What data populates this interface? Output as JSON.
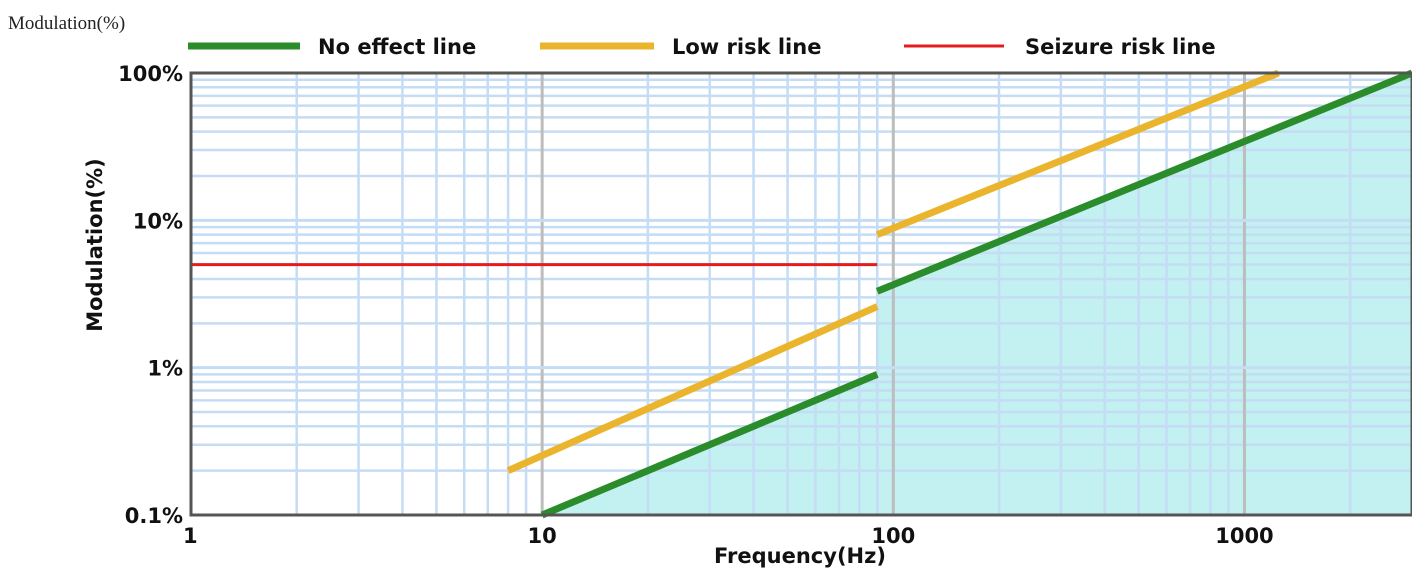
{
  "corner_label": "Modulation(%)",
  "colors": {
    "no_effect": "#2a8c2a",
    "low_risk": "#ebb42d",
    "seizure_risk": "#e51c1c",
    "safe_region": "#c3f0f0",
    "minor_grid": "#c5dcf5",
    "decade_grid": "#bdbdbd",
    "frame": "#555555"
  },
  "chart_data": {
    "type": "line",
    "title": "",
    "xlabel": "Frequency(Hz)",
    "ylabel": "Modulation(%)",
    "x_scale": "log",
    "y_scale": "log",
    "xlim": [
      1,
      3000
    ],
    "ylim": [
      0.1,
      100
    ],
    "x_ticks": [
      {
        "value": 1,
        "label": "1"
      },
      {
        "value": 10,
        "label": "10"
      },
      {
        "value": 100,
        "label": "100"
      },
      {
        "value": 1000,
        "label": "1000"
      }
    ],
    "y_ticks": [
      {
        "value": 0.1,
        "label": "0.1%"
      },
      {
        "value": 1,
        "label": "1%"
      },
      {
        "value": 10,
        "label": "10%"
      },
      {
        "value": 100,
        "label": "100%"
      }
    ],
    "grid": true,
    "legend_position": "top",
    "series": [
      {
        "name": "No effect line",
        "color_key": "no_effect",
        "segments": [
          [
            [
              10,
              0.1
            ],
            [
              90,
              0.9
            ]
          ],
          [
            [
              90,
              3.3
            ],
            [
              3000,
              100
            ]
          ]
        ]
      },
      {
        "name": "Low risk line",
        "color_key": "low_risk",
        "segments": [
          [
            [
              8,
              0.2
            ],
            [
              90,
              2.6
            ]
          ],
          [
            [
              90,
              8
            ],
            [
              1250,
              100
            ]
          ]
        ]
      },
      {
        "name": "Seizure risk line",
        "color_key": "seizure_risk",
        "segments": [
          [
            [
              1,
              5
            ],
            [
              90,
              5
            ]
          ]
        ]
      }
    ],
    "shaded_region": {
      "label": "",
      "points": [
        [
          10,
          0.1
        ],
        [
          90,
          0.9
        ],
        [
          90,
          3.3
        ],
        [
          3000,
          100
        ],
        [
          3000,
          0.1
        ]
      ]
    }
  }
}
